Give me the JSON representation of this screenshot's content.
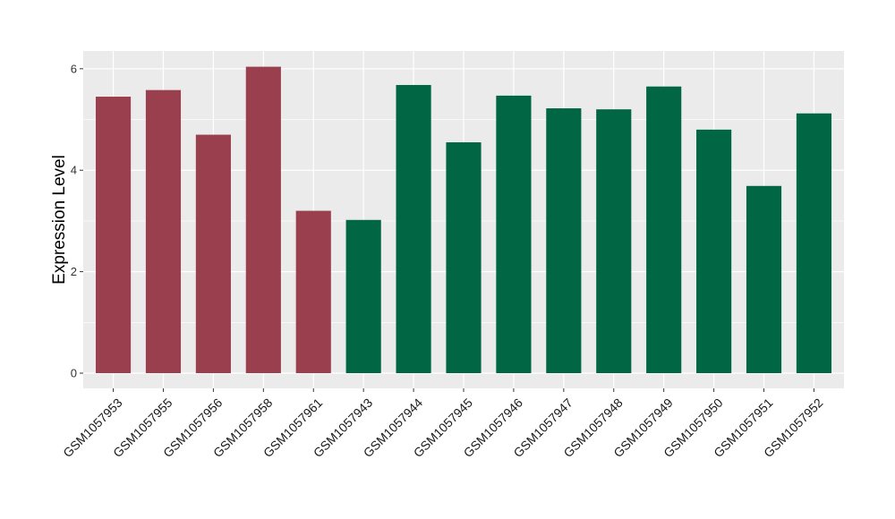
{
  "chart_data": {
    "type": "bar",
    "ylabel": "Expression Level",
    "xlabel": "",
    "title": "",
    "ylim": [
      -0.3,
      6.35
    ],
    "yticks": [
      0,
      2,
      4,
      6
    ],
    "grid": true,
    "background": "#EBEBEB",
    "grid_color": "#FFFFFF",
    "categories": [
      "GSM1057953",
      "GSM1057955",
      "GSM1057956",
      "GSM1057958",
      "GSM1057961",
      "GSM1057943",
      "GSM1057944",
      "GSM1057945",
      "GSM1057946",
      "GSM1057947",
      "GSM1057948",
      "GSM1057949",
      "GSM1057950",
      "GSM1057951",
      "GSM1057952"
    ],
    "values": [
      5.45,
      5.58,
      4.7,
      6.04,
      3.2,
      3.02,
      5.68,
      4.55,
      5.47,
      5.22,
      5.2,
      5.65,
      4.8,
      3.69,
      5.12
    ],
    "bar_colors": [
      "#9A3F4D",
      "#9A3F4D",
      "#9A3F4D",
      "#9A3F4D",
      "#9A3F4D",
      "#006644",
      "#006644",
      "#006644",
      "#006644",
      "#006644",
      "#006644",
      "#006644",
      "#006644",
      "#006644",
      "#006644"
    ]
  }
}
